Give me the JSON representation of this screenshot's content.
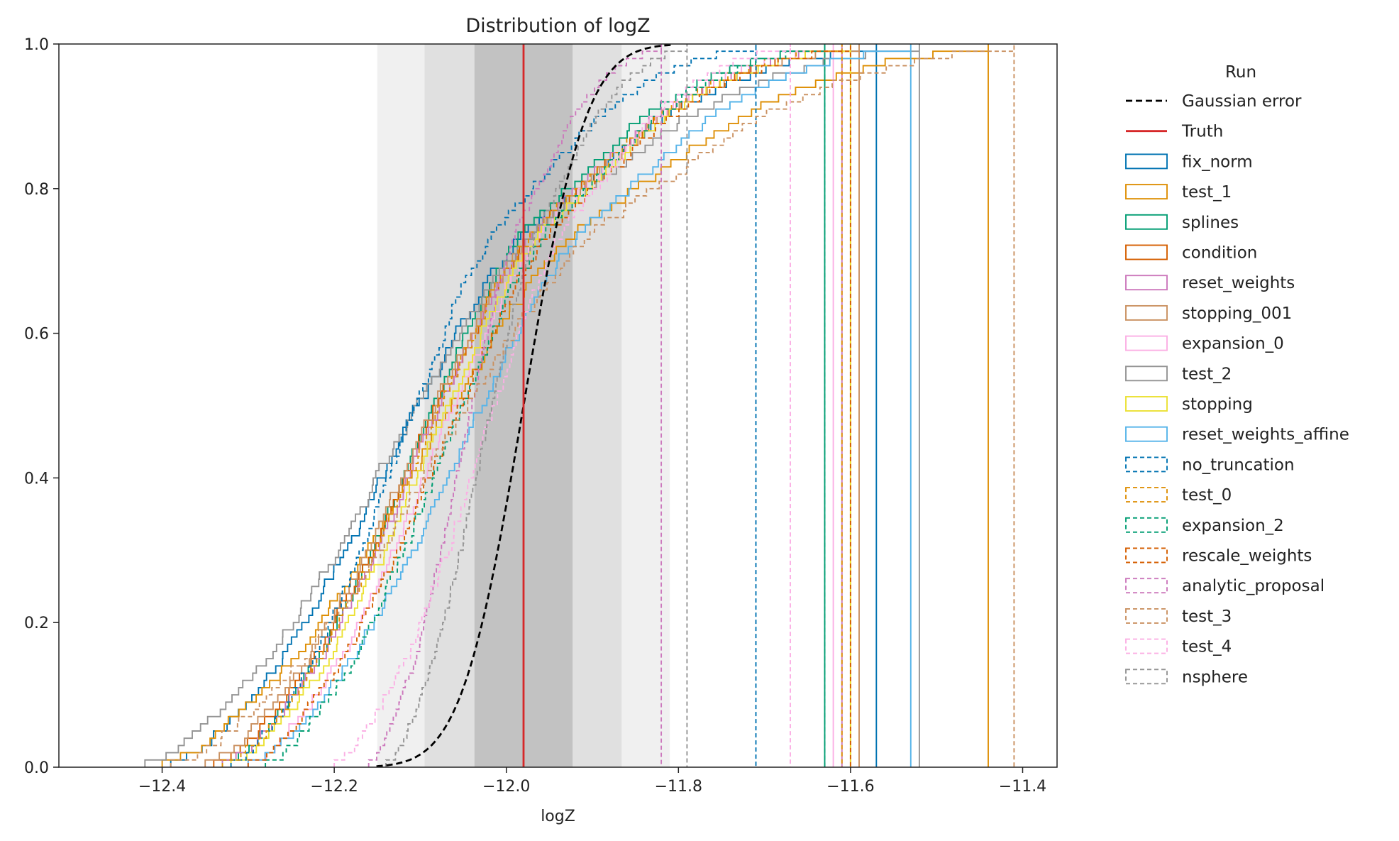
{
  "chart_data": {
    "type": "line",
    "title": "Distribution of logZ",
    "xlabel": "logZ",
    "ylabel": "",
    "xlim": [
      -12.52,
      -11.36
    ],
    "ylim": [
      0,
      1
    ],
    "xticks": [
      -12.4,
      -12.2,
      -12.0,
      -11.8,
      -11.6,
      -11.4
    ],
    "xtick_labels": [
      "−12.4",
      "−12.2",
      "−12.0",
      "−11.8",
      "−11.6",
      "−11.4"
    ],
    "yticks": [
      0.0,
      0.2,
      0.4,
      0.6,
      0.8,
      1.0
    ],
    "ytick_labels": [
      "0.0",
      "0.2",
      "0.4",
      "0.6",
      "0.8",
      "1.0"
    ],
    "grid": false,
    "legend_position": "outside-right",
    "legend_title": "Run",
    "truth": -11.98,
    "truth_color": "#d62728",
    "sigma_bands": [
      {
        "lo": -12.15,
        "hi": -11.81,
        "color": "#f0f0f0"
      },
      {
        "lo": -12.095,
        "hi": -11.866,
        "color": "#e0e0e0"
      },
      {
        "lo": -12.037,
        "hi": -11.923,
        "color": "#c2c2c2"
      }
    ],
    "gaussian": {
      "name": "Gaussian error",
      "mu": -11.98,
      "sigma": 0.057,
      "color": "#000000"
    },
    "series": [
      {
        "name": "fix_norm",
        "color": "#0173b2",
        "style": "solid",
        "min": -12.39,
        "max": -11.57
      },
      {
        "name": "test_1",
        "color": "#de8f05",
        "style": "solid",
        "min": -12.4,
        "max": -11.44
      },
      {
        "name": "splines",
        "color": "#029e73",
        "style": "solid",
        "min": -12.33,
        "max": -11.63
      },
      {
        "name": "condition",
        "color": "#d55e00",
        "style": "solid",
        "min": -12.34,
        "max": -11.6
      },
      {
        "name": "reset_weights",
        "color": "#cc78bc",
        "style": "solid",
        "min": -12.33,
        "max": -11.61
      },
      {
        "name": "stopping_001",
        "color": "#ca9161",
        "style": "solid",
        "min": -12.35,
        "max": -11.59
      },
      {
        "name": "expansion_0",
        "color": "#fbafe4",
        "style": "solid",
        "min": -12.3,
        "max": -11.62
      },
      {
        "name": "test_2",
        "color": "#949494",
        "style": "solid",
        "min": -12.42,
        "max": -11.52
      },
      {
        "name": "stopping",
        "color": "#ece133",
        "style": "solid",
        "min": -12.32,
        "max": -11.6
      },
      {
        "name": "reset_weights_affine",
        "color": "#56b4e9",
        "style": "solid",
        "min": -12.3,
        "max": -11.53
      },
      {
        "name": "no_truncation",
        "color": "#0173b2",
        "style": "dashed",
        "min": -12.32,
        "max": -11.71
      },
      {
        "name": "test_0",
        "color": "#de8f05",
        "style": "dashed",
        "min": -12.33,
        "max": -11.61
      },
      {
        "name": "expansion_2",
        "color": "#029e73",
        "style": "dashed",
        "min": -12.28,
        "max": -11.63
      },
      {
        "name": "rescale_weights",
        "color": "#d55e00",
        "style": "dashed",
        "min": -12.3,
        "max": -11.6
      },
      {
        "name": "analytic_proposal",
        "color": "#cc78bc",
        "style": "dashed",
        "min": -12.16,
        "max": -11.82
      },
      {
        "name": "test_3",
        "color": "#ca9161",
        "style": "dashed",
        "min": -12.39,
        "max": -11.41
      },
      {
        "name": "test_4",
        "color": "#fbafe4",
        "style": "dashed",
        "min": -12.2,
        "max": -11.67
      },
      {
        "name": "nsphere",
        "color": "#949494",
        "style": "dashed",
        "min": -12.14,
        "max": -11.79
      }
    ]
  }
}
